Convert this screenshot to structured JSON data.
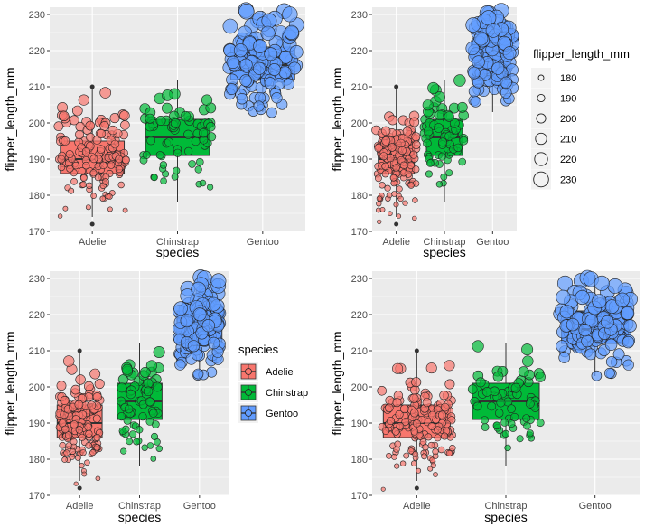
{
  "chart_data": [
    {
      "type": "scatter",
      "variant": "jittered-points-over-boxplot",
      "xlabel": "species",
      "ylabel": "flipper_length_mm",
      "ylim": [
        170,
        232
      ],
      "yticks": [
        170,
        180,
        190,
        200,
        210,
        220,
        230
      ],
      "categories": [
        "Adelie",
        "Chinstrap",
        "Gentoo"
      ],
      "jitter": "wide",
      "grid": true,
      "legend": null,
      "size_mapped": true,
      "boxplots": [
        {
          "category": "Adelie",
          "min": 174,
          "q1": 186,
          "median": 190,
          "q3": 195,
          "max": 210,
          "outliers": [
            172,
            210
          ]
        },
        {
          "category": "Chinstrap",
          "min": 178,
          "q1": 191,
          "median": 196,
          "q3": 201,
          "max": 212,
          "outliers": []
        },
        {
          "category": "Gentoo",
          "min": 203,
          "q1": 212,
          "median": 216,
          "q3": 221,
          "max": 231,
          "outliers": []
        }
      ]
    },
    {
      "type": "scatter",
      "variant": "jittered-points-over-boxplot",
      "xlabel": "species",
      "ylabel": "flipper_length_mm",
      "ylim": [
        170,
        232
      ],
      "yticks": [
        170,
        180,
        190,
        200,
        210,
        220,
        230
      ],
      "categories": [
        "Adelie",
        "Chinstrap",
        "Gentoo"
      ],
      "jitter": "narrow",
      "grid": true,
      "legend": "right",
      "size_mapped": true,
      "boxplots": [
        {
          "category": "Adelie",
          "min": 174,
          "q1": 186,
          "median": 190,
          "q3": 195,
          "max": 210,
          "outliers": [
            172,
            210
          ]
        },
        {
          "category": "Chinstrap",
          "min": 178,
          "q1": 191,
          "median": 196,
          "q3": 201,
          "max": 212,
          "outliers": []
        },
        {
          "category": "Gentoo",
          "min": 203,
          "q1": 212,
          "median": 216,
          "q3": 221,
          "max": 231,
          "outliers": []
        }
      ]
    },
    {
      "type": "scatter",
      "variant": "jittered-points-over-boxplot",
      "xlabel": "species",
      "ylabel": "flipper_length_mm",
      "ylim": [
        170,
        232
      ],
      "yticks": [
        170,
        180,
        190,
        200,
        210,
        220,
        230
      ],
      "categories": [
        "Adelie",
        "Chinstrap",
        "Gentoo"
      ],
      "jitter": "medium",
      "grid": true,
      "legend": "right",
      "size_mapped": true,
      "boxplots": [
        {
          "category": "Adelie",
          "min": 174,
          "q1": 186,
          "median": 190,
          "q3": 195,
          "max": 210,
          "outliers": [
            172,
            210
          ]
        },
        {
          "category": "Chinstrap",
          "min": 178,
          "q1": 191,
          "median": 196,
          "q3": 201,
          "max": 212,
          "outliers": []
        },
        {
          "category": "Gentoo",
          "min": 203,
          "q1": 212,
          "median": 216,
          "q3": 221,
          "max": 231,
          "outliers": []
        }
      ]
    },
    {
      "type": "scatter",
      "variant": "jittered-points-over-boxplot",
      "xlabel": "species",
      "ylabel": "flipper_length_mm",
      "ylim": [
        170,
        232
      ],
      "yticks": [
        170,
        180,
        190,
        200,
        210,
        220,
        230
      ],
      "categories": [
        "Adelie",
        "Chinstrap",
        "Gentoo"
      ],
      "jitter": "wide",
      "grid": true,
      "legend": null,
      "size_mapped": true,
      "boxplots": [
        {
          "category": "Adelie",
          "min": 174,
          "q1": 186,
          "median": 190,
          "q3": 195,
          "max": 210,
          "outliers": [
            172,
            210
          ]
        },
        {
          "category": "Chinstrap",
          "min": 178,
          "q1": 191,
          "median": 196,
          "q3": 201,
          "max": 212,
          "outliers": []
        },
        {
          "category": "Gentoo",
          "min": 203,
          "q1": 212,
          "median": 216,
          "q3": 221,
          "max": 231,
          "outliers": []
        }
      ]
    }
  ],
  "legends": {
    "size": {
      "title": "flipper_length_mm",
      "values": [
        180,
        190,
        200,
        210,
        220,
        230
      ]
    },
    "fill": {
      "title": "species",
      "items": [
        "Adelie",
        "Chinstrap",
        "Gentoo"
      ]
    }
  },
  "colors": {
    "Adelie": "#F8766D",
    "Chinstrap": "#00BA38",
    "Gentoo": "#619CFF",
    "panel": "#EBEBEB",
    "grid": "#FFFFFF"
  }
}
